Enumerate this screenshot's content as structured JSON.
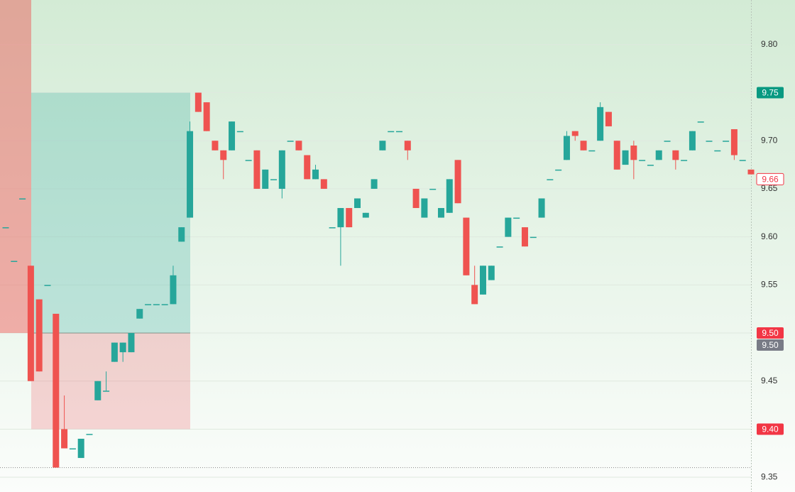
{
  "chart_data": {
    "type": "candlestick",
    "open": [
      9.61,
      9.575,
      9.64,
      9.57,
      9.535,
      9.55,
      9.52,
      9.4,
      9.38,
      9.37,
      9.395,
      9.43,
      9.44,
      9.47,
      9.48,
      9.48,
      9.515,
      9.53,
      9.53,
      9.53,
      9.53,
      9.595,
      9.62,
      9.75,
      9.74,
      9.7,
      9.69,
      9.69,
      9.71,
      9.68,
      9.69,
      9.65,
      9.66,
      9.65,
      9.7,
      9.7,
      9.685,
      9.66,
      9.66,
      9.61,
      9.61,
      9.63,
      9.63,
      9.62,
      9.65,
      9.69,
      9.71,
      9.71,
      9.7,
      9.65,
      9.62,
      9.65,
      9.62,
      9.625,
      9.68,
      9.62,
      9.55,
      9.54,
      9.555,
      9.59,
      9.6,
      9.62,
      9.61,
      9.6,
      9.62,
      9.66,
      9.67,
      9.68,
      9.71,
      9.7,
      9.69,
      9.7,
      9.73,
      9.7,
      9.675,
      9.695,
      9.68,
      9.675,
      9.68,
      9.7,
      9.69,
      9.68,
      9.69,
      9.72,
      9.7,
      9.69,
      9.7,
      9.712,
      9.68,
      9.67
    ],
    "high": [
      9.61,
      9.575,
      9.64,
      9.57,
      9.535,
      9.55,
      9.52,
      9.435,
      9.38,
      9.39,
      9.395,
      9.45,
      9.46,
      9.49,
      9.49,
      9.5,
      9.525,
      9.53,
      9.53,
      9.53,
      9.57,
      9.61,
      9.72,
      9.75,
      9.74,
      9.7,
      9.69,
      9.72,
      9.71,
      9.68,
      9.69,
      9.67,
      9.66,
      9.69,
      9.7,
      9.7,
      9.685,
      9.675,
      9.66,
      9.61,
      9.63,
      9.63,
      9.64,
      9.625,
      9.66,
      9.7,
      9.71,
      9.71,
      9.7,
      9.65,
      9.64,
      9.65,
      9.63,
      9.66,
      9.68,
      9.62,
      9.57,
      9.57,
      9.57,
      9.59,
      9.62,
      9.62,
      9.61,
      9.6,
      9.64,
      9.66,
      9.67,
      9.71,
      9.71,
      9.7,
      9.69,
      9.74,
      9.73,
      9.7,
      9.69,
      9.7,
      9.68,
      9.675,
      9.69,
      9.7,
      9.69,
      9.68,
      9.71,
      9.72,
      9.7,
      9.69,
      9.7,
      9.712,
      9.68,
      9.67
    ],
    "low": [
      9.61,
      9.575,
      9.64,
      9.45,
      9.46,
      9.55,
      9.36,
      9.38,
      9.38,
      9.37,
      9.395,
      9.43,
      9.44,
      9.47,
      9.47,
      9.48,
      9.515,
      9.53,
      9.53,
      9.53,
      9.53,
      9.595,
      9.62,
      9.73,
      9.71,
      9.69,
      9.66,
      9.69,
      9.71,
      9.68,
      9.65,
      9.65,
      9.66,
      9.64,
      9.7,
      9.69,
      9.66,
      9.66,
      9.65,
      9.61,
      9.57,
      9.61,
      9.63,
      9.62,
      9.65,
      9.69,
      9.71,
      9.71,
      9.68,
      9.63,
      9.62,
      9.65,
      9.62,
      9.625,
      9.635,
      9.56,
      9.53,
      9.54,
      9.555,
      9.59,
      9.6,
      9.62,
      9.59,
      9.6,
      9.62,
      9.66,
      9.67,
      9.68,
      9.7,
      9.69,
      9.69,
      9.7,
      9.715,
      9.67,
      9.675,
      9.66,
      9.68,
      9.675,
      9.68,
      9.7,
      9.67,
      9.68,
      9.69,
      9.72,
      9.7,
      9.69,
      9.7,
      9.68,
      9.68,
      9.665
    ],
    "close": [
      9.61,
      9.575,
      9.64,
      9.45,
      9.46,
      9.55,
      9.36,
      9.38,
      9.38,
      9.39,
      9.395,
      9.45,
      9.44,
      9.49,
      9.49,
      9.5,
      9.525,
      9.53,
      9.53,
      9.53,
      9.56,
      9.61,
      9.71,
      9.73,
      9.71,
      9.69,
      9.68,
      9.72,
      9.71,
      9.68,
      9.65,
      9.67,
      9.66,
      9.69,
      9.7,
      9.69,
      9.66,
      9.67,
      9.65,
      9.61,
      9.63,
      9.61,
      9.64,
      9.625,
      9.66,
      9.7,
      9.71,
      9.71,
      9.69,
      9.63,
      9.64,
      9.65,
      9.63,
      9.66,
      9.635,
      9.56,
      9.53,
      9.57,
      9.57,
      9.59,
      9.62,
      9.62,
      9.59,
      9.6,
      9.64,
      9.66,
      9.67,
      9.705,
      9.705,
      9.69,
      9.69,
      9.735,
      9.715,
      9.67,
      9.69,
      9.68,
      9.68,
      9.675,
      9.69,
      9.7,
      9.68,
      9.68,
      9.71,
      9.72,
      9.7,
      9.69,
      9.7,
      9.685,
      9.68,
      9.665
    ],
    "up_color": "#26a69a",
    "down_color": "#ef5350",
    "ylim": [
      9.3346,
      9.8464
    ],
    "yticks": [
      9.35,
      {
        "value": 9.4,
        "label": "9.40"
      },
      9.45,
      {
        "value": 9.5,
        "label": "9.50"
      },
      9.55,
      {
        "value": 9.6,
        "label": "9.60"
      },
      9.65,
      {
        "value": 9.7,
        "label": "9.70"
      },
      9.75,
      {
        "value": 9.8,
        "label": "9.80"
      }
    ],
    "grid": true,
    "price_labels": [
      {
        "value": 9.75,
        "label": "9.75",
        "color": "#089981"
      },
      {
        "value": 9.5,
        "label": "9.50",
        "color": "#f23645"
      },
      {
        "value": 9.5,
        "label": "9.50",
        "color": "#787b86"
      },
      {
        "value": 9.4,
        "label": "9.40",
        "color": "#f23645"
      },
      {
        "value": 9.66,
        "label": "9.66",
        "color": "#f23645",
        "style": "outline"
      }
    ]
  }
}
